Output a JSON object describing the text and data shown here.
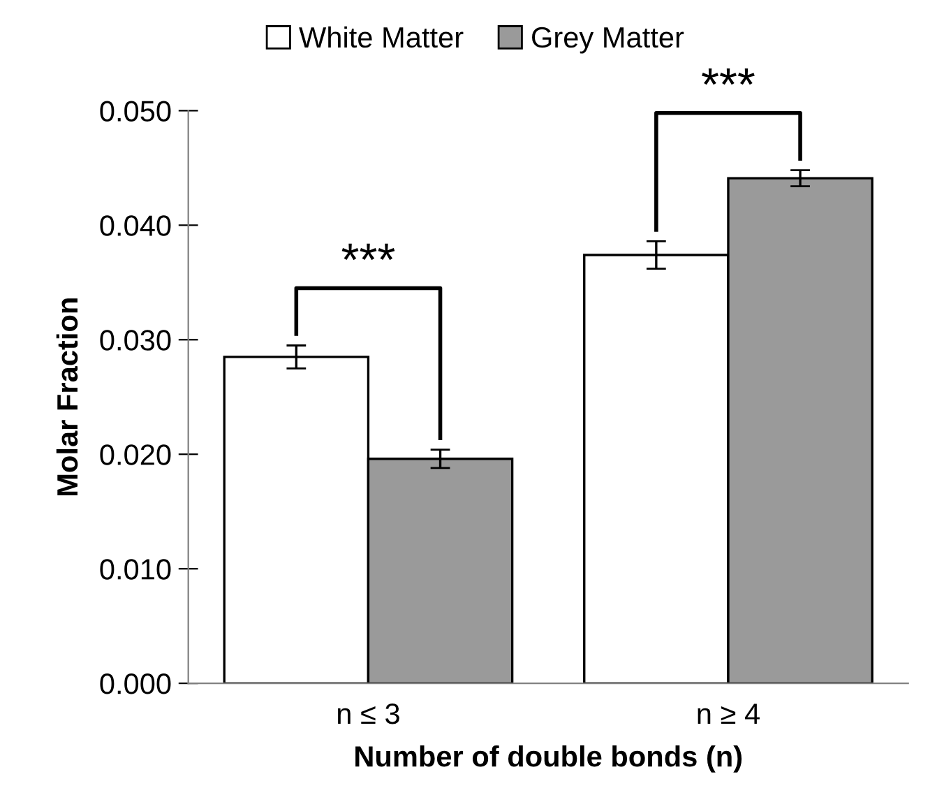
{
  "chart_data": {
    "type": "bar",
    "xlabel": "Number of double bonds (n)",
    "ylabel": "Molar Fraction",
    "categories": [
      "n ≤ 3",
      "n ≥ 4"
    ],
    "series": [
      {
        "name": "White Matter",
        "color": "#ffffff",
        "values": [
          0.0285,
          0.0374
        ],
        "errors": [
          0.001,
          0.0012
        ]
      },
      {
        "name": "Grey Matter",
        "color": "#9a9a9a",
        "values": [
          0.0196,
          0.0441
        ],
        "errors": [
          0.0008,
          0.0007
        ]
      }
    ],
    "ylim": [
      0,
      0.05
    ],
    "yticks": [
      {
        "value": 0,
        "label": "0.000"
      },
      {
        "value": 0.01,
        "label": "0.010"
      },
      {
        "value": 0.02,
        "label": "0.020"
      },
      {
        "value": 0.03,
        "label": "0.030"
      },
      {
        "value": 0.04,
        "label": "0.040"
      },
      {
        "value": 0.05,
        "label": "0.050"
      }
    ],
    "annotations": [
      "***",
      "***"
    ],
    "legend": "top",
    "grid": false
  }
}
